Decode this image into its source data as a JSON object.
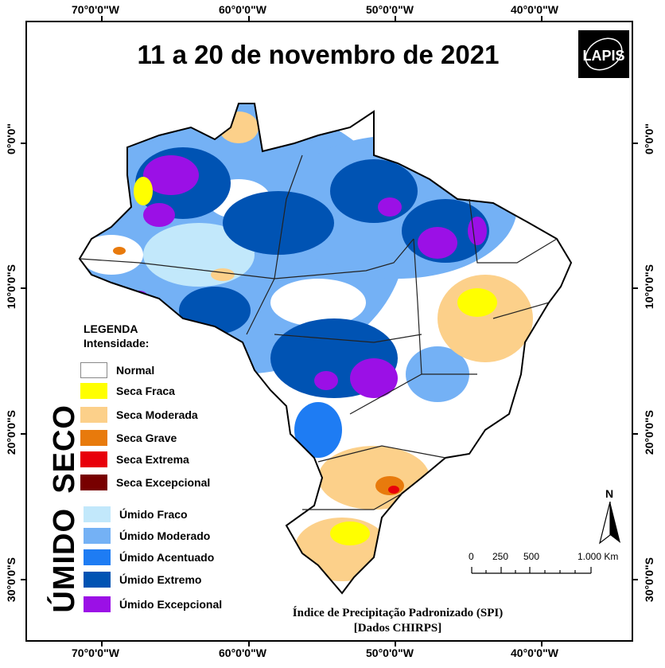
{
  "title": "11 a 20 de novembro de 2021",
  "logo_text": "LAPIS",
  "coords": {
    "longitudes": [
      "70°0'0\"W",
      "60°0'0\"W",
      "50°0'0\"W",
      "40°0'0\"W"
    ],
    "latitudes": [
      "0°0'0\"",
      "10°0'0\"S",
      "20°0'0\"S",
      "30°0'0\"S"
    ]
  },
  "legend": {
    "heading": "LEGENDA",
    "subheading": "Intensidade:",
    "dry_label": "SECO",
    "wet_label": "ÚMIDO",
    "items": [
      {
        "label": "Normal",
        "color": "#ffffff"
      },
      {
        "label": "Seca Fraca",
        "color": "#ffff00"
      },
      {
        "label": "Seca Moderada",
        "color": "#fcd08a"
      },
      {
        "label": "Seca Grave",
        "color": "#e87a0c"
      },
      {
        "label": "Seca Extrema",
        "color": "#e8000a"
      },
      {
        "label": "Seca Excepcional",
        "color": "#780000"
      },
      {
        "label": "Úmido Fraco",
        "color": "#c2e8fb"
      },
      {
        "label": "Úmido Moderado",
        "color": "#74b1f5"
      },
      {
        "label": "Úmido Acentuado",
        "color": "#1e7cf3"
      },
      {
        "label": "Úmido Extremo",
        "color": "#0053b3"
      },
      {
        "label": "Úmido Excepcional",
        "color": "#9b10e6"
      }
    ]
  },
  "scale": {
    "ticks": [
      "0",
      "250",
      "500",
      "1.000 Km"
    ]
  },
  "north_label": "N",
  "footer": {
    "line1": "Índice de Precipitação Padronizado (SPI)",
    "line2": "[Dados CHIRPS]"
  }
}
